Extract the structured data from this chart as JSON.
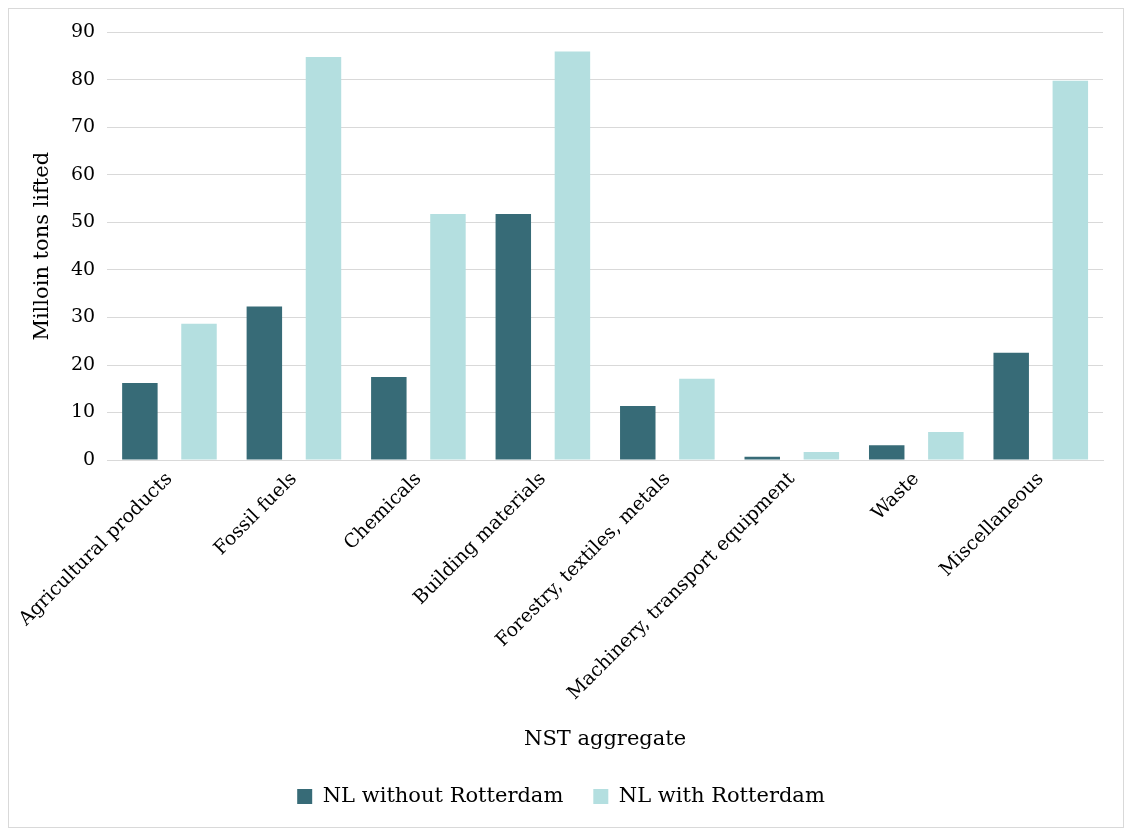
{
  "chart_data": {
    "type": "bar",
    "xlabel": "NST aggregate",
    "ylabel": "Milloin tons lifted",
    "categories": [
      "Agricultural products",
      "Fossil fuels",
      "Chemicals",
      "Building materials",
      "Forestry, textiles, metals",
      "Machinery, transport equipment",
      "Waste",
      "Miscellaneous"
    ],
    "series": [
      {
        "name": "NL without Rotterdam",
        "color": "#376b77",
        "values": [
          16.2,
          32.3,
          17.5,
          51.8,
          11.4,
          0.7,
          3.1,
          22.6
        ]
      },
      {
        "name": "NL with Rotterdam",
        "color": "#b4dfe0",
        "values": [
          28.7,
          84.8,
          51.8,
          86,
          17.1,
          1.7,
          5.9,
          79.8
        ]
      }
    ],
    "ylim": [
      0,
      90
    ],
    "yticks": [
      0,
      10,
      20,
      30,
      40,
      50,
      60,
      70,
      80,
      90
    ],
    "grid": "y",
    "legend": "bottom"
  }
}
